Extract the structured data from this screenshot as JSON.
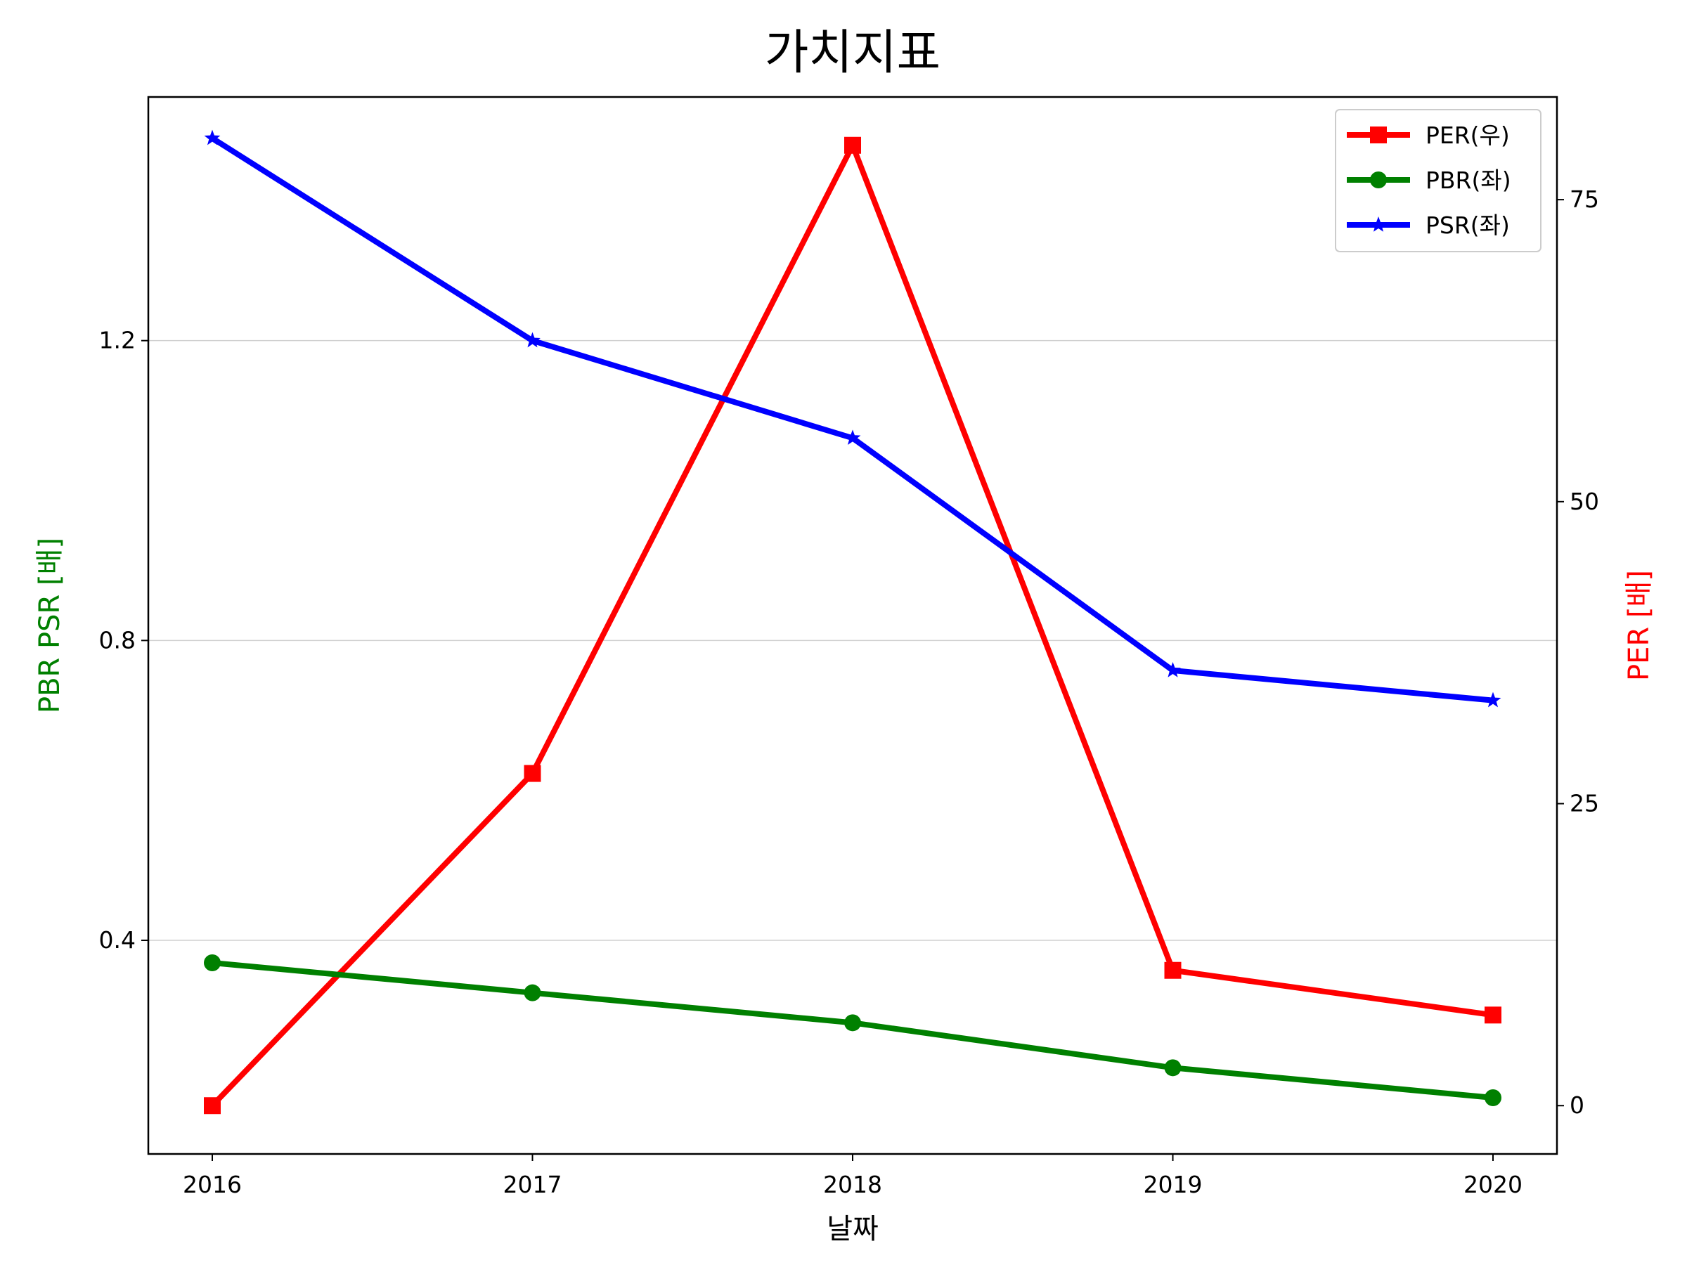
{
  "chart_data": {
    "type": "line",
    "title": "가치지표",
    "xlabel": "날짜",
    "ylabel_left": "PBR PSR [배]",
    "ylabel_right": "PER [배]",
    "x": [
      "2016",
      "2017",
      "2018",
      "2019",
      "2020"
    ],
    "ylim_left": [
      0.115,
      1.525
    ],
    "yticks_left": [
      "0.4",
      "0.8",
      "1.2"
    ],
    "ylim_right": [
      -4,
      83.5
    ],
    "yticks_right": [
      "0",
      "25",
      "50",
      "75"
    ],
    "grid": "horizontal",
    "legend_position": "top-right",
    "series": [
      {
        "name": "PER(우)",
        "axis": "right",
        "color": "#ff0000",
        "marker": "square",
        "values": [
          0,
          27.5,
          79.5,
          11.2,
          7.5
        ]
      },
      {
        "name": "PBR(좌)",
        "axis": "left",
        "color": "#008000",
        "marker": "circle",
        "values": [
          0.37,
          0.33,
          0.29,
          0.23,
          0.19
        ]
      },
      {
        "name": "PSR(좌)",
        "axis": "left",
        "color": "#0000ff",
        "marker": "star",
        "values": [
          1.47,
          1.2,
          1.07,
          0.76,
          0.72
        ]
      }
    ]
  }
}
